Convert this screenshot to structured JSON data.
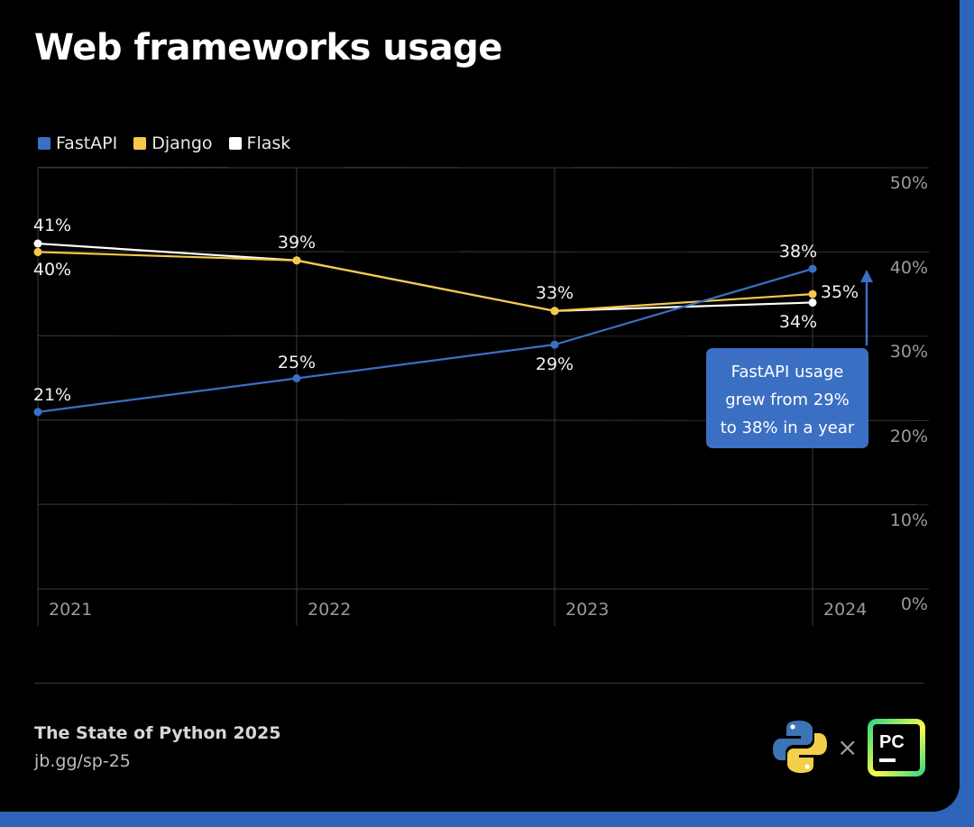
{
  "title": "Web frameworks usage",
  "legend": [
    {
      "label": "FastAPI",
      "color": "#3b6fc4"
    },
    {
      "label": "Django",
      "color": "#f5c94a"
    },
    {
      "label": "Flask",
      "color": "#ffffff"
    }
  ],
  "chart_data": {
    "type": "line",
    "x": [
      "2021",
      "2022",
      "2023",
      "2024"
    ],
    "ylim": [
      0,
      50
    ],
    "yticks": [
      "0%",
      "10%",
      "20%",
      "30%",
      "40%",
      "50%"
    ],
    "grid": true,
    "legend_position": "top-left",
    "series": [
      {
        "name": "FastAPI",
        "color": "#3b6fc4",
        "values": [
          21,
          25,
          29,
          38
        ],
        "labels": [
          "21%",
          "25%",
          "29%",
          "38%"
        ]
      },
      {
        "name": "Django",
        "color": "#f5c94a",
        "values": [
          40,
          39,
          33,
          35
        ],
        "labels": [
          "40%",
          "39%",
          "33%",
          "35%"
        ]
      },
      {
        "name": "Flask",
        "color": "#ffffff",
        "values": [
          41,
          39,
          33,
          34
        ],
        "labels": [
          "41%",
          "",
          "",
          "34%"
        ]
      }
    ],
    "annotation": {
      "lines": [
        "FastAPI usage",
        "grew from 29%",
        "to 38% in a year"
      ],
      "color": "#3b6fc4"
    }
  },
  "footer": {
    "source_title": "The State of Python 2025",
    "source_link": "jb.gg/sp-25",
    "times_symbol": "×",
    "pc_logo_text": "PC"
  },
  "colors": {
    "background": "#000000",
    "grid": "#3a3a3a",
    "tick_text": "#9a9a9a",
    "accent_blue": "#2d63b8"
  }
}
